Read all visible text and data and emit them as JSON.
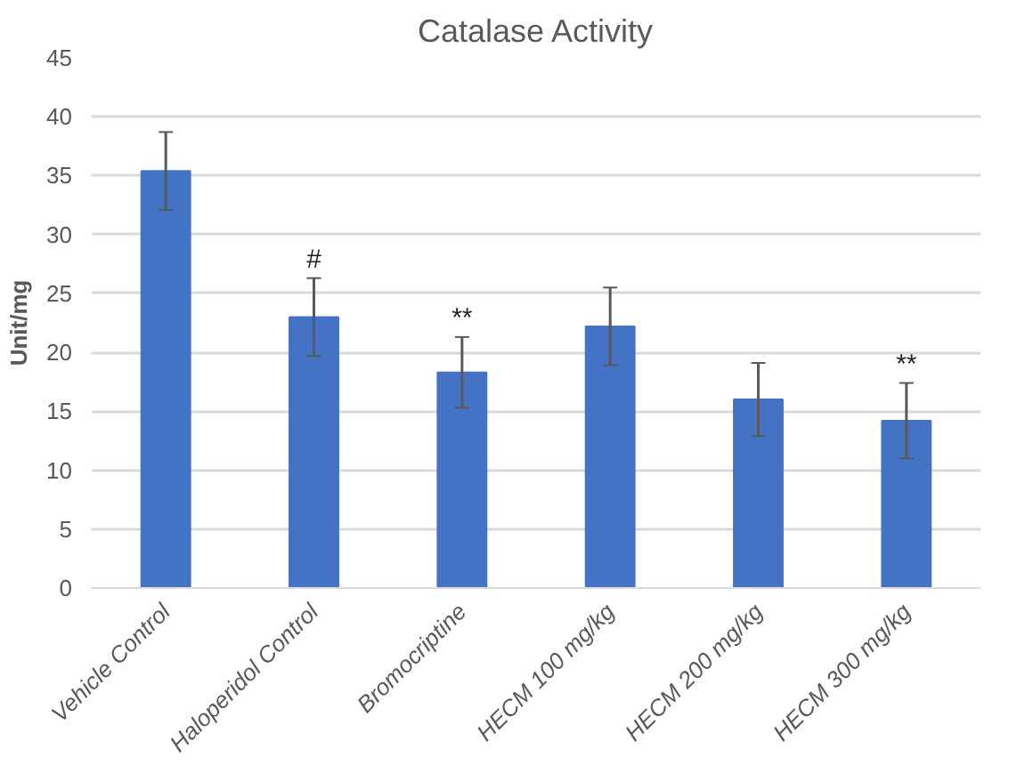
{
  "chart_data": {
    "type": "bar",
    "title": "Catalase Activity",
    "ylabel": "Unit/mg",
    "categories": [
      "Vehicle Control",
      "Haloperidol Control",
      "Bromocriptine",
      "HECM 100 mg/kg",
      "HECM 200 mg/kg",
      "HECM 300 mg/kg"
    ],
    "values": [
      35.4,
      23.0,
      18.3,
      22.2,
      16.0,
      14.2
    ],
    "errors": [
      3.3,
      3.3,
      3.0,
      3.3,
      3.1,
      3.2
    ],
    "color": "#4472c4",
    "ylim": [
      0,
      45
    ],
    "yticks": [
      0,
      5,
      10,
      15,
      20,
      25,
      30,
      35,
      40,
      45
    ],
    "grid": "y",
    "annotations": [
      {
        "text": "#",
        "x": "Haloperidol Control",
        "y": 26.3
      },
      {
        "text": "**",
        "x": "Bromocriptine",
        "y": 21.3
      },
      {
        "text": "**",
        "x": "HECM 300 mg/kg",
        "y": 17.4
      }
    ]
  }
}
